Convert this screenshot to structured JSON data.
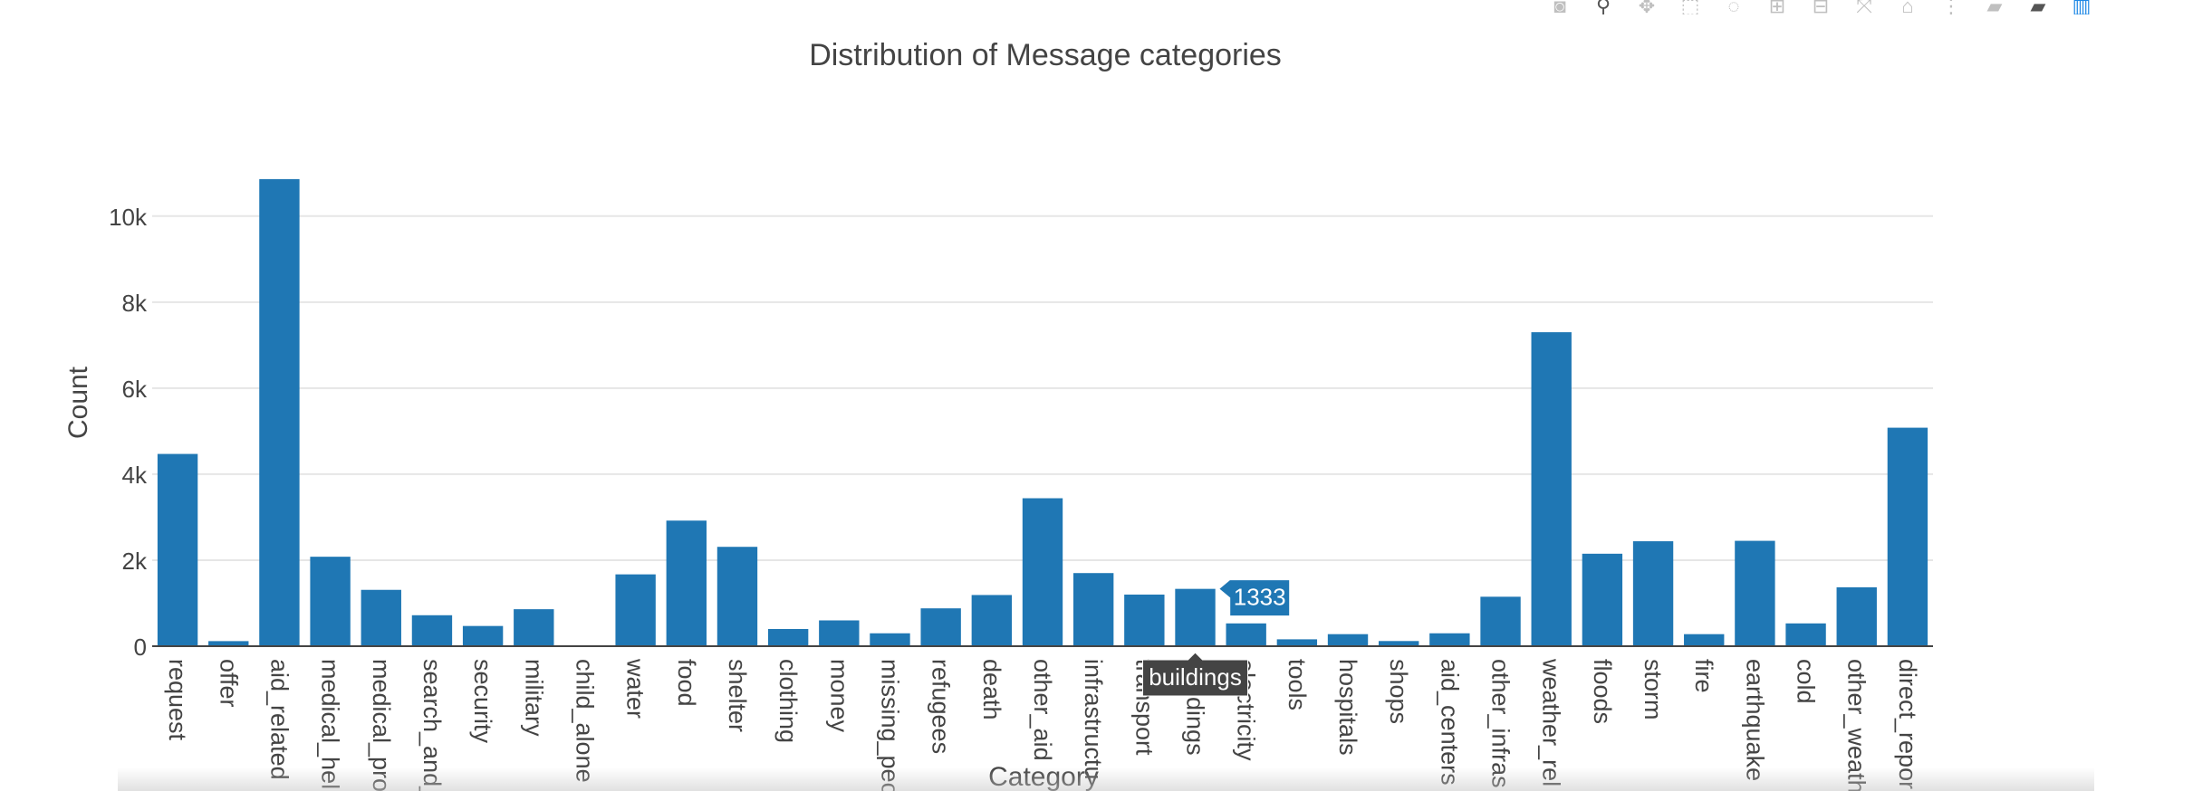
{
  "modebar": {
    "icons": [
      "camera-icon",
      "zoom-icon",
      "pan-icon",
      "box-select-icon",
      "lasso-icon",
      "zoom-in-icon",
      "zoom-out-icon",
      "autoscale-icon",
      "reset-axes-icon",
      "spike-lines-icon",
      "hover-closest-icon",
      "hover-compare-icon",
      "plotly-logo-icon"
    ]
  },
  "chart_data": {
    "type": "bar",
    "title": "Distribution of Message categories",
    "xlabel": "Category",
    "ylabel": "Count",
    "ylim": [
      0,
      10900
    ],
    "yticks": [
      0,
      2000,
      4000,
      6000,
      8000,
      10000
    ],
    "ytick_labels": [
      "0",
      "2k",
      "4k",
      "6k",
      "8k",
      "10k"
    ],
    "grid": true,
    "color": "#1f77b4",
    "categories": [
      "request",
      "offer",
      "aid_related",
      "medical_help",
      "medical_products",
      "search_and_rescue",
      "security",
      "military",
      "child_alone",
      "water",
      "food",
      "shelter",
      "clothing",
      "money",
      "missing_people",
      "refugees",
      "death",
      "other_aid",
      "infrastructure_related",
      "transport",
      "buildings",
      "electricity",
      "tools",
      "hospitals",
      "shops",
      "aid_centers",
      "other_infrastructure",
      "weather_related",
      "floods",
      "storm",
      "fire",
      "earthquake",
      "cold",
      "other_weather",
      "direct_report"
    ],
    "tick_labels": [
      "request",
      "offer",
      "aid_related",
      "medical_hel",
      "medical_pro",
      "search_and_",
      "security",
      "military",
      "child_alone",
      "water",
      "food",
      "shelter",
      "clothing",
      "money",
      "missing_peo",
      "refugees",
      "death",
      "other_aid",
      "infrastructu",
      "transport",
      "buildings",
      "electricity",
      "tools",
      "hospitals",
      "shops",
      "aid_centers",
      "other_infras",
      "weather_rel",
      "floods",
      "storm",
      "fire",
      "earthquake",
      "cold",
      "other_weath",
      "direct_repor"
    ],
    "values": [
      4470,
      118,
      10860,
      2080,
      1310,
      720,
      470,
      860,
      0,
      1670,
      2920,
      2310,
      400,
      600,
      300,
      880,
      1190,
      3440,
      1700,
      1200,
      1333,
      530,
      160,
      280,
      120,
      300,
      1150,
      7300,
      2150,
      2440,
      280,
      2450,
      530,
      1370,
      5080
    ],
    "hover": {
      "category": "buildings",
      "value": "1333"
    }
  }
}
